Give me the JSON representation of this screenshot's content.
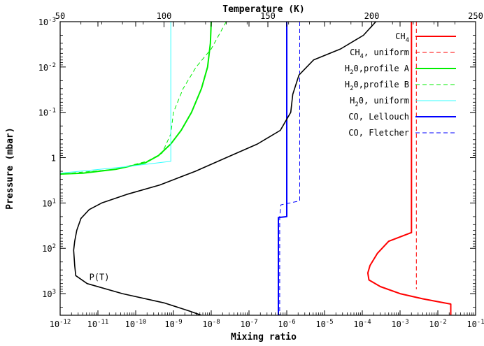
{
  "chart_data": {
    "type": "line",
    "x_bottom": {
      "label": "Mixing ratio",
      "scale": "log",
      "range": [
        1e-12,
        0.1
      ],
      "ticks": [
        {
          "v": 1e-12,
          "b": "10",
          "e": "-12"
        },
        {
          "v": 1e-11,
          "b": "10",
          "e": "-11"
        },
        {
          "v": 1e-10,
          "b": "10",
          "e": "-10"
        },
        {
          "v": 1e-09,
          "b": "10",
          "e": "-9"
        },
        {
          "v": 1e-08,
          "b": "10",
          "e": "-8"
        },
        {
          "v": 1e-07,
          "b": "10",
          "e": "-7"
        },
        {
          "v": 1e-06,
          "b": "10",
          "e": "-6"
        },
        {
          "v": 1e-05,
          "b": "10",
          "e": "-5"
        },
        {
          "v": 0.0001,
          "b": "10",
          "e": "-4"
        },
        {
          "v": 0.001,
          "b": "10",
          "e": "-3"
        },
        {
          "v": 0.01,
          "b": "10",
          "e": "-2"
        },
        {
          "v": 0.1,
          "b": "10",
          "e": "-1"
        }
      ]
    },
    "x_top": {
      "label": "Temperature (K)",
      "scale": "linear",
      "range": [
        50,
        250
      ],
      "ticks": [
        {
          "v": 50,
          "t": "50"
        },
        {
          "v": 100,
          "t": "100"
        },
        {
          "v": 150,
          "t": "150"
        },
        {
          "v": 200,
          "t": "200"
        },
        {
          "v": 250,
          "t": "250"
        }
      ]
    },
    "y": {
      "label": "Pressure (mbar)",
      "scale": "log",
      "inverted": true,
      "range": [
        0.001,
        3000
      ],
      "ticks": [
        {
          "v": 0.001,
          "b": "10",
          "e": "-3"
        },
        {
          "v": 0.01,
          "b": "10",
          "e": "-2"
        },
        {
          "v": 0.1,
          "b": "10",
          "e": "-1"
        },
        {
          "v": 1,
          "b": "1",
          "e": ""
        },
        {
          "v": 10,
          "b": "10",
          "e": "1"
        },
        {
          "v": 100,
          "b": "10",
          "e": "2"
        },
        {
          "v": 1000,
          "b": "10",
          "e": "3"
        }
      ]
    },
    "series": [
      {
        "name": "CH₄",
        "legend_base": "CH",
        "legend_sub": "4",
        "legend_rest": "",
        "color": "#ff0000",
        "dash": false,
        "width": 2,
        "points": [
          [
            0.002,
            0.001
          ],
          [
            0.002,
            45
          ],
          [
            0.0005,
            70
          ],
          [
            0.00025,
            130
          ],
          [
            0.00016,
            240
          ],
          [
            0.00014,
            350
          ],
          [
            0.00015,
            500
          ],
          [
            0.0003,
            700
          ],
          [
            0.001,
            1000
          ],
          [
            0.004,
            1300
          ],
          [
            0.012,
            1550
          ],
          [
            0.022,
            1700
          ],
          [
            0.022,
            3000
          ]
        ]
      },
      {
        "name": "CH₄, uniform",
        "legend_base": "CH",
        "legend_sub": "4",
        "legend_rest": ", uniform",
        "color": "#ff0000",
        "dash": true,
        "width": 1,
        "points": [
          [
            0.0027,
            0.001
          ],
          [
            0.0027,
            800
          ]
        ]
      },
      {
        "name": "H₂0,profile A",
        "legend_base": "H",
        "legend_sub": "2",
        "legend_rest": "0,profile A",
        "color": "#00ee00",
        "dash": false,
        "width": 2,
        "points": [
          [
            1e-08,
            0.001
          ],
          [
            9.5e-09,
            0.003
          ],
          [
            8e-09,
            0.01
          ],
          [
            5.5e-09,
            0.03
          ],
          [
            3e-09,
            0.1
          ],
          [
            1.6e-09,
            0.25
          ],
          [
            8.5e-10,
            0.5
          ],
          [
            4e-10,
            0.9
          ],
          [
            1.8e-10,
            1.3
          ],
          [
            3e-11,
            1.8
          ],
          [
            4e-12,
            2.2
          ],
          [
            1e-12,
            2.3
          ]
        ]
      },
      {
        "name": "H₂0,profile B",
        "legend_base": "H",
        "legend_sub": "2",
        "legend_rest": "0,profile B",
        "color": "#00ee00",
        "dash": true,
        "width": 1,
        "points": [
          [
            2.5e-08,
            0.001
          ],
          [
            1e-08,
            0.004
          ],
          [
            4e-09,
            0.01
          ],
          [
            1.8e-09,
            0.03
          ],
          [
            1e-09,
            0.1
          ],
          [
            8.5e-10,
            0.3
          ],
          [
            5e-10,
            0.8
          ],
          [
            2e-10,
            1.2
          ],
          [
            3e-11,
            1.8
          ],
          [
            1e-12,
            2.3
          ]
        ]
      },
      {
        "name": "H₂0, uniform",
        "legend_base": "H",
        "legend_sub": "2",
        "legend_rest": "0, uniform",
        "color": "#33ffff",
        "dash": false,
        "width": 1,
        "points": [
          [
            8.5e-10,
            0.001
          ],
          [
            8.5e-10,
            1.2
          ],
          [
            5e-11,
            1.6
          ],
          [
            1e-12,
            2.2
          ]
        ]
      },
      {
        "name": "CO, Lellouch",
        "legend_base": "CO, Lellouch",
        "legend_sub": "",
        "legend_rest": "",
        "color": "#0000ff",
        "dash": false,
        "width": 2,
        "points": [
          [
            1e-06,
            0.001
          ],
          [
            1e-06,
            20
          ],
          [
            6e-07,
            21
          ],
          [
            6e-07,
            3000
          ]
        ]
      },
      {
        "name": "CO, Fletcher",
        "legend_base": "CO, Fletcher",
        "legend_sub": "",
        "legend_rest": "",
        "color": "#0000ff",
        "dash": true,
        "width": 1,
        "points": [
          [
            2.2e-06,
            0.001
          ],
          [
            2.2e-06,
            9
          ],
          [
            7e-07,
            11
          ],
          [
            6.5e-07,
            20
          ],
          [
            6.5e-07,
            3000
          ]
        ]
      }
    ],
    "temperature_profile": {
      "name": "P(T)",
      "color": "#000000",
      "label_position": [
        64,
        500
      ],
      "points": [
        [
          202,
          0.001
        ],
        [
          196,
          0.002
        ],
        [
          185,
          0.004
        ],
        [
          172,
          0.007
        ],
        [
          165,
          0.015
        ],
        [
          162,
          0.04
        ],
        [
          161,
          0.1
        ],
        [
          156,
          0.25
        ],
        [
          145,
          0.5
        ],
        [
          130,
          1
        ],
        [
          115,
          2
        ],
        [
          98,
          4
        ],
        [
          82,
          6.5
        ],
        [
          70,
          10
        ],
        [
          64,
          14
        ],
        [
          60,
          22
        ],
        [
          58,
          40
        ],
        [
          57,
          70
        ],
        [
          56.5,
          110
        ],
        [
          57,
          240
        ],
        [
          57.5,
          400
        ],
        [
          63,
          600
        ],
        [
          80,
          1000
        ],
        [
          100,
          1600
        ],
        [
          112,
          2400
        ],
        [
          118,
          3000
        ]
      ]
    }
  }
}
